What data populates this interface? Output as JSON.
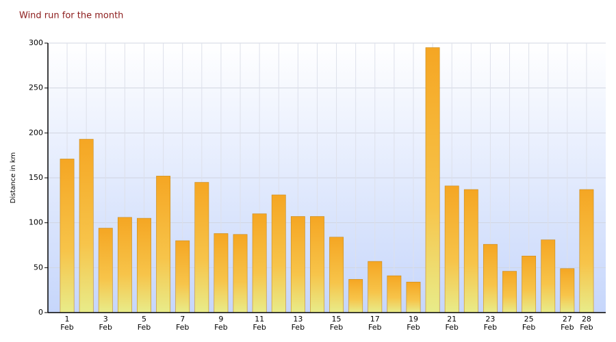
{
  "chart_data": {
    "type": "bar",
    "title": "Wind run for the month",
    "y_label": "Distance in km",
    "categories": [
      "1\nFeb",
      null,
      "3\nFeb",
      null,
      "5\nFeb",
      null,
      "7\nFeb",
      null,
      "9\nFeb",
      null,
      "11\nFeb",
      null,
      "13\nFeb",
      null,
      "15\nFeb",
      null,
      "17\nFeb",
      null,
      "19\nFeb",
      null,
      "21\nFeb",
      null,
      "23\nFeb",
      null,
      "25\nFeb",
      null,
      "27\nFeb",
      "28\nFeb"
    ],
    "values": [
      171,
      193,
      94,
      106,
      105,
      152,
      80,
      145,
      88,
      87,
      110,
      131,
      107,
      107,
      84,
      37,
      57,
      41,
      34,
      295,
      141,
      137,
      76,
      46,
      63,
      81,
      49,
      137
    ],
    "color": "#f5a623",
    "ylim": [
      0,
      300
    ],
    "yticks": [
      0,
      50,
      100,
      150,
      200,
      250,
      300
    ],
    "grid": true
  }
}
